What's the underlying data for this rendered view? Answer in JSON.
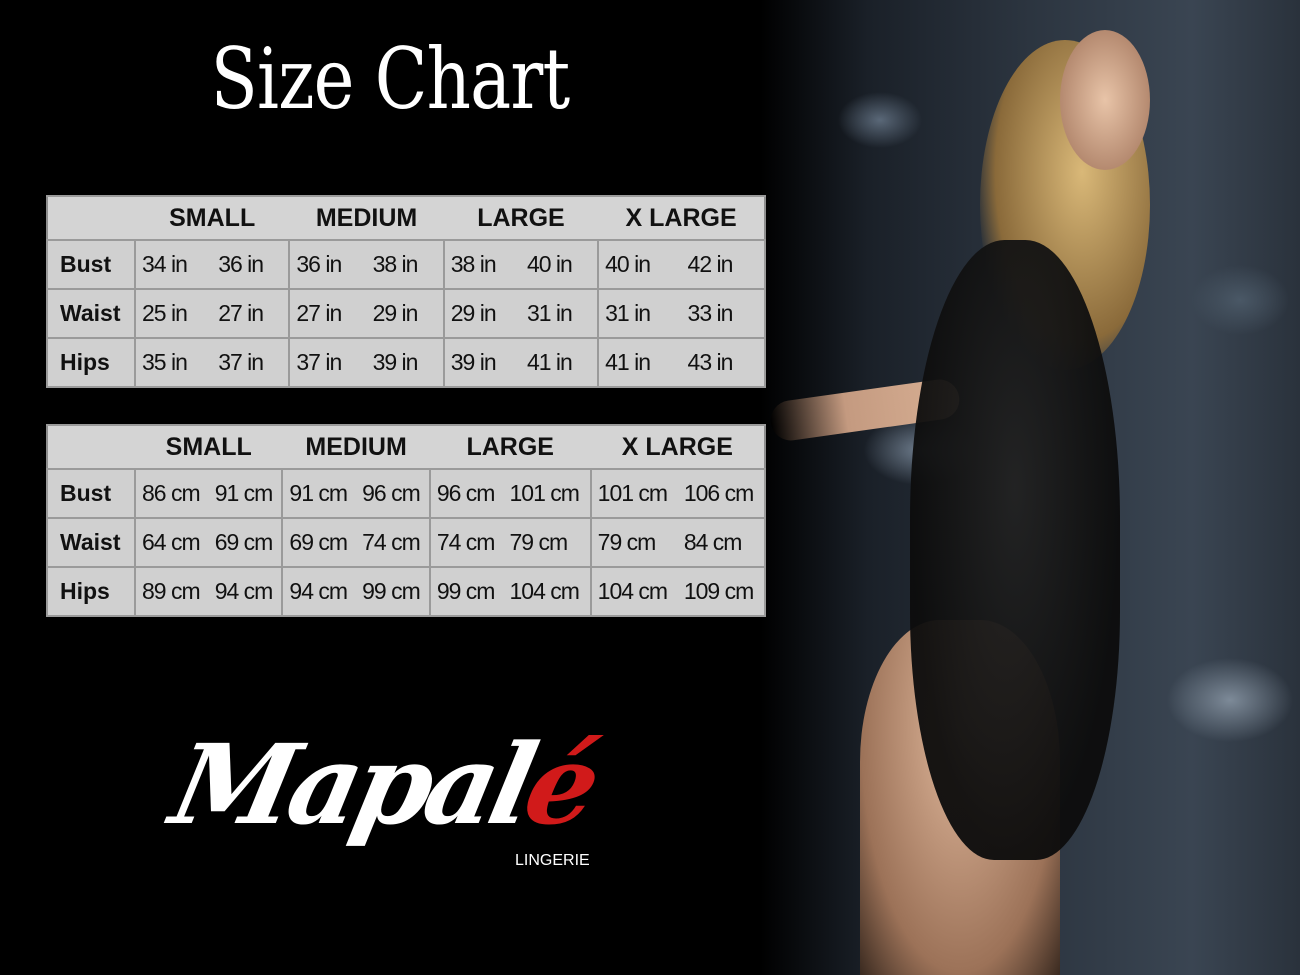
{
  "title": "Size Chart",
  "sizes": [
    "SMALL",
    "MEDIUM",
    "LARGE",
    "X LARGE"
  ],
  "tables": [
    {
      "unit": "in",
      "rows": [
        {
          "label": "Bust",
          "values": [
            "34 in",
            "36 in",
            "36 in",
            "38 in",
            "38 in",
            "40 in",
            "40 in",
            "42 in"
          ]
        },
        {
          "label": "Waist",
          "values": [
            "25 in",
            "27 in",
            "27 in",
            "29 in",
            "29 in",
            "31 in",
            "31 in",
            "33 in"
          ]
        },
        {
          "label": "Hips",
          "values": [
            "35 in",
            "37 in",
            "37 in",
            "39 in",
            "39 in",
            "41 in",
            "41 in",
            "43 in"
          ]
        }
      ]
    },
    {
      "unit": "cm",
      "rows": [
        {
          "label": "Bust",
          "values": [
            "86 cm",
            "91 cm",
            "91 cm",
            "96 cm",
            "96 cm",
            "101 cm",
            "101 cm",
            "106 cm"
          ]
        },
        {
          "label": "Waist",
          "values": [
            "64 cm",
            "69 cm",
            "69 cm",
            "74 cm",
            "74 cm",
            "79  cm",
            "79 cm",
            "84 cm"
          ]
        },
        {
          "label": "Hips",
          "values": [
            "89 cm",
            "94 cm",
            "94 cm",
            "99 cm",
            "99 cm",
            "104 cm",
            "104 cm",
            "109 cm"
          ]
        }
      ]
    }
  ],
  "logo": {
    "name_main": "Mapal",
    "name_accent": "é",
    "subtitle": "LINGERIE",
    "accent_color": "#d11a1a"
  }
}
